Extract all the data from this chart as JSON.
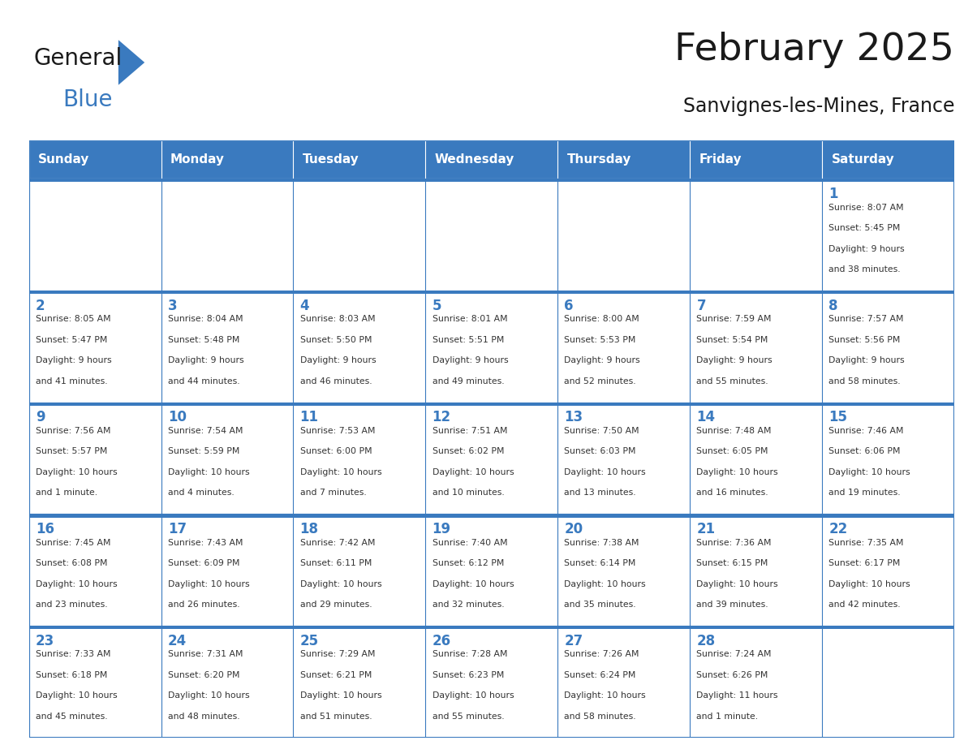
{
  "title": "February 2025",
  "subtitle": "Sanvignes-les-Mines, France",
  "header_color": "#3a7abf",
  "header_text_color": "#ffffff",
  "border_color": "#3a7abf",
  "text_color": "#333333",
  "day_number_color": "#3a7abf",
  "days_of_week": [
    "Sunday",
    "Monday",
    "Tuesday",
    "Wednesday",
    "Thursday",
    "Friday",
    "Saturday"
  ],
  "weeks": [
    [
      {
        "day": "",
        "info": ""
      },
      {
        "day": "",
        "info": ""
      },
      {
        "day": "",
        "info": ""
      },
      {
        "day": "",
        "info": ""
      },
      {
        "day": "",
        "info": ""
      },
      {
        "day": "",
        "info": ""
      },
      {
        "day": "1",
        "info": "Sunrise: 8:07 AM\nSunset: 5:45 PM\nDaylight: 9 hours\nand 38 minutes."
      }
    ],
    [
      {
        "day": "2",
        "info": "Sunrise: 8:05 AM\nSunset: 5:47 PM\nDaylight: 9 hours\nand 41 minutes."
      },
      {
        "day": "3",
        "info": "Sunrise: 8:04 AM\nSunset: 5:48 PM\nDaylight: 9 hours\nand 44 minutes."
      },
      {
        "day": "4",
        "info": "Sunrise: 8:03 AM\nSunset: 5:50 PM\nDaylight: 9 hours\nand 46 minutes."
      },
      {
        "day": "5",
        "info": "Sunrise: 8:01 AM\nSunset: 5:51 PM\nDaylight: 9 hours\nand 49 minutes."
      },
      {
        "day": "6",
        "info": "Sunrise: 8:00 AM\nSunset: 5:53 PM\nDaylight: 9 hours\nand 52 minutes."
      },
      {
        "day": "7",
        "info": "Sunrise: 7:59 AM\nSunset: 5:54 PM\nDaylight: 9 hours\nand 55 minutes."
      },
      {
        "day": "8",
        "info": "Sunrise: 7:57 AM\nSunset: 5:56 PM\nDaylight: 9 hours\nand 58 minutes."
      }
    ],
    [
      {
        "day": "9",
        "info": "Sunrise: 7:56 AM\nSunset: 5:57 PM\nDaylight: 10 hours\nand 1 minute."
      },
      {
        "day": "10",
        "info": "Sunrise: 7:54 AM\nSunset: 5:59 PM\nDaylight: 10 hours\nand 4 minutes."
      },
      {
        "day": "11",
        "info": "Sunrise: 7:53 AM\nSunset: 6:00 PM\nDaylight: 10 hours\nand 7 minutes."
      },
      {
        "day": "12",
        "info": "Sunrise: 7:51 AM\nSunset: 6:02 PM\nDaylight: 10 hours\nand 10 minutes."
      },
      {
        "day": "13",
        "info": "Sunrise: 7:50 AM\nSunset: 6:03 PM\nDaylight: 10 hours\nand 13 minutes."
      },
      {
        "day": "14",
        "info": "Sunrise: 7:48 AM\nSunset: 6:05 PM\nDaylight: 10 hours\nand 16 minutes."
      },
      {
        "day": "15",
        "info": "Sunrise: 7:46 AM\nSunset: 6:06 PM\nDaylight: 10 hours\nand 19 minutes."
      }
    ],
    [
      {
        "day": "16",
        "info": "Sunrise: 7:45 AM\nSunset: 6:08 PM\nDaylight: 10 hours\nand 23 minutes."
      },
      {
        "day": "17",
        "info": "Sunrise: 7:43 AM\nSunset: 6:09 PM\nDaylight: 10 hours\nand 26 minutes."
      },
      {
        "day": "18",
        "info": "Sunrise: 7:42 AM\nSunset: 6:11 PM\nDaylight: 10 hours\nand 29 minutes."
      },
      {
        "day": "19",
        "info": "Sunrise: 7:40 AM\nSunset: 6:12 PM\nDaylight: 10 hours\nand 32 minutes."
      },
      {
        "day": "20",
        "info": "Sunrise: 7:38 AM\nSunset: 6:14 PM\nDaylight: 10 hours\nand 35 minutes."
      },
      {
        "day": "21",
        "info": "Sunrise: 7:36 AM\nSunset: 6:15 PM\nDaylight: 10 hours\nand 39 minutes."
      },
      {
        "day": "22",
        "info": "Sunrise: 7:35 AM\nSunset: 6:17 PM\nDaylight: 10 hours\nand 42 minutes."
      }
    ],
    [
      {
        "day": "23",
        "info": "Sunrise: 7:33 AM\nSunset: 6:18 PM\nDaylight: 10 hours\nand 45 minutes."
      },
      {
        "day": "24",
        "info": "Sunrise: 7:31 AM\nSunset: 6:20 PM\nDaylight: 10 hours\nand 48 minutes."
      },
      {
        "day": "25",
        "info": "Sunrise: 7:29 AM\nSunset: 6:21 PM\nDaylight: 10 hours\nand 51 minutes."
      },
      {
        "day": "26",
        "info": "Sunrise: 7:28 AM\nSunset: 6:23 PM\nDaylight: 10 hours\nand 55 minutes."
      },
      {
        "day": "27",
        "info": "Sunrise: 7:26 AM\nSunset: 6:24 PM\nDaylight: 10 hours\nand 58 minutes."
      },
      {
        "day": "28",
        "info": "Sunrise: 7:24 AM\nSunset: 6:26 PM\nDaylight: 11 hours\nand 1 minute."
      },
      {
        "day": "",
        "info": ""
      }
    ]
  ],
  "logo_triangle_color": "#3a7abf",
  "fig_width": 11.88,
  "fig_height": 9.18,
  "dpi": 100
}
